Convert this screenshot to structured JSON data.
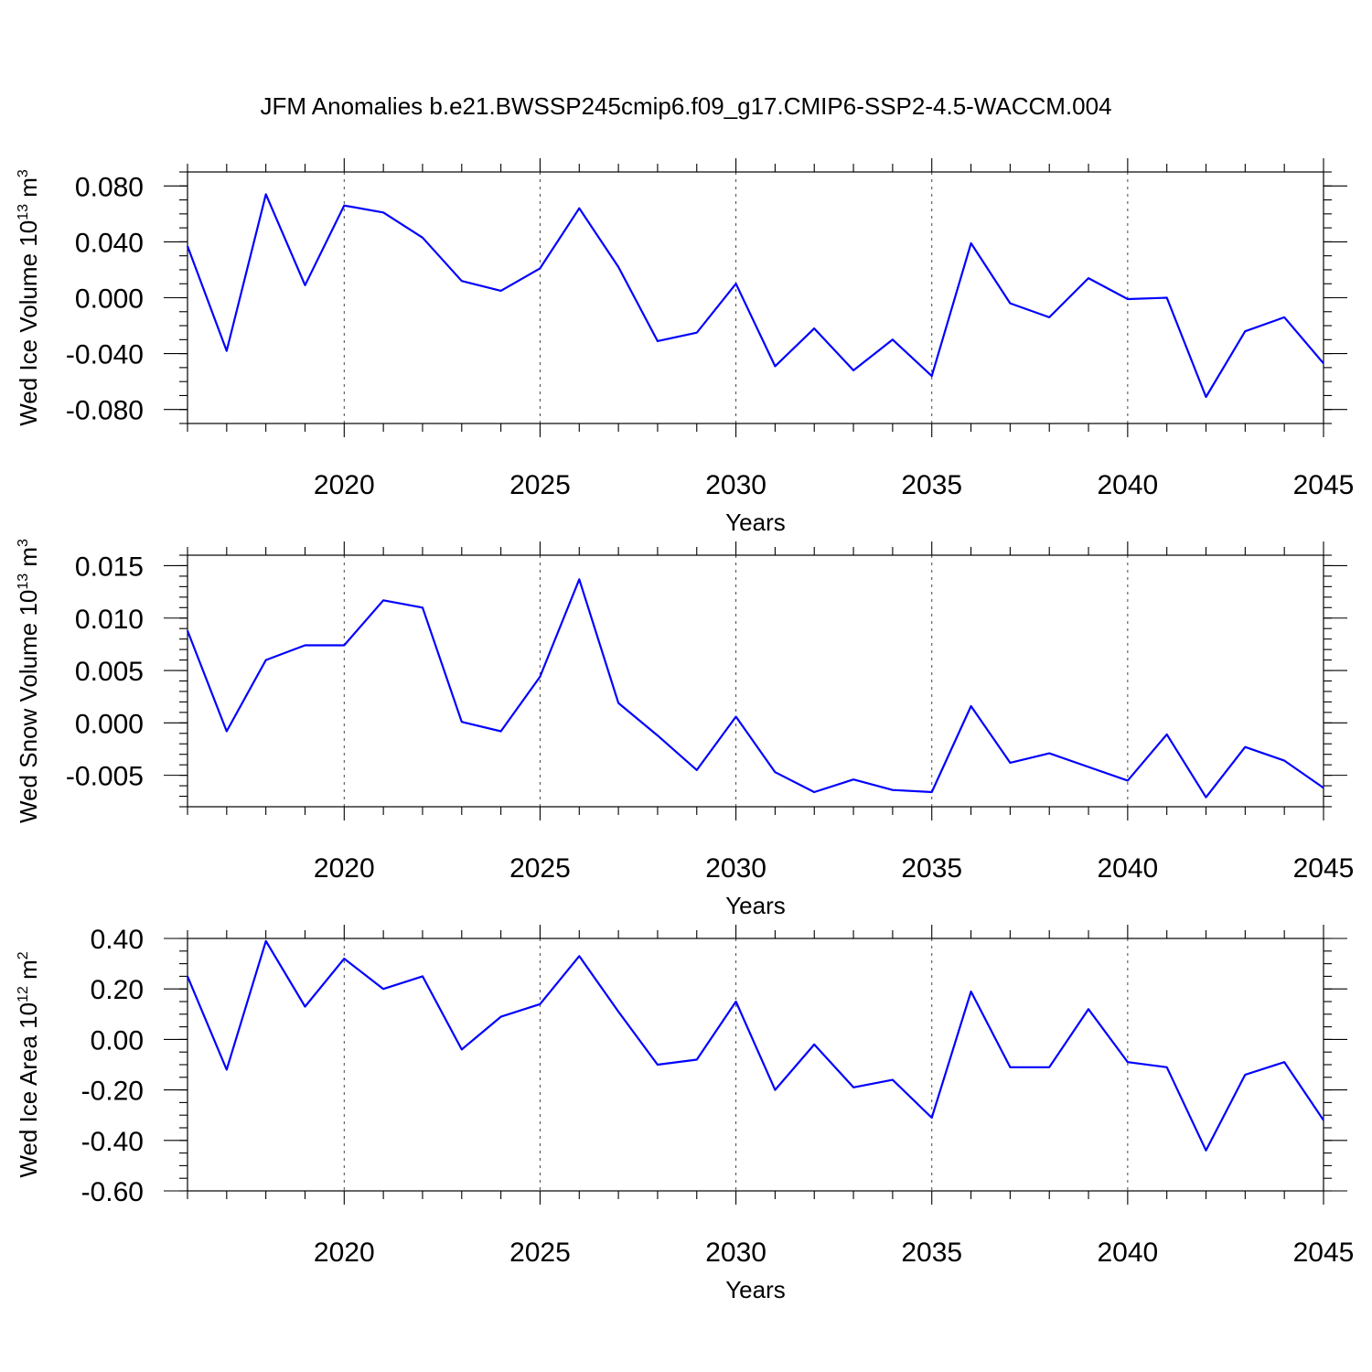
{
  "title": "JFM Anomalies b.e21.BWSSP245cmip6.f09_g17.CMIP6-SSP2-4.5-WACCM.004",
  "line_color": "#0000ff",
  "chart_data": [
    {
      "type": "line",
      "ylabel": "Wed Ice Volume 10",
      "ylabel_exp": "13",
      "ylabel_unit": " m",
      "ylabel_unit_exp": "3",
      "xlabel": "Years",
      "xlim": [
        2016,
        2045
      ],
      "ylim": [
        -0.09,
        0.09
      ],
      "yticks": [
        0.08,
        0.04,
        0.0,
        -0.04,
        -0.08
      ],
      "ytick_labels": [
        "0.080",
        "0.040",
        "0.000",
        "-0.040",
        "-0.080"
      ],
      "yminor_step": 0.01,
      "xticks": [
        2020,
        2025,
        2030,
        2035,
        2040,
        2045
      ],
      "xtick_labels": [
        "2020",
        "2025",
        "2030",
        "2035",
        "2040",
        "2045"
      ],
      "grid_x": [
        2020,
        2025,
        2030,
        2035,
        2040
      ],
      "x": [
        2016,
        2017,
        2018,
        2019,
        2020,
        2021,
        2022,
        2023,
        2024,
        2025,
        2026,
        2027,
        2028,
        2029,
        2030,
        2031,
        2032,
        2033,
        2034,
        2035,
        2036,
        2037,
        2038,
        2039,
        2040,
        2041,
        2042,
        2043,
        2044,
        2045
      ],
      "values": [
        0.037,
        -0.038,
        0.074,
        0.009,
        0.066,
        0.061,
        0.043,
        0.012,
        0.005,
        0.021,
        0.064,
        0.022,
        -0.031,
        -0.025,
        0.01,
        -0.049,
        -0.022,
        -0.052,
        -0.03,
        -0.056,
        0.039,
        -0.004,
        -0.014,
        0.014,
        -0.001,
        0.0,
        -0.071,
        -0.024,
        -0.014,
        -0.047
      ]
    },
    {
      "type": "line",
      "ylabel": "Wed Snow Volume 10",
      "ylabel_exp": "13",
      "ylabel_unit": " m",
      "ylabel_unit_exp": "3",
      "xlabel": "Years",
      "xlim": [
        2016,
        2045
      ],
      "ylim": [
        -0.008,
        0.016
      ],
      "yticks": [
        0.015,
        0.01,
        0.005,
        0.0,
        -0.005
      ],
      "ytick_labels": [
        "0.015",
        "0.010",
        "0.005",
        "0.000",
        "-0.005"
      ],
      "yminor_step": 0.001,
      "xticks": [
        2020,
        2025,
        2030,
        2035,
        2040,
        2045
      ],
      "xtick_labels": [
        "2020",
        "2025",
        "2030",
        "2035",
        "2040",
        "2045"
      ],
      "grid_x": [
        2020,
        2025,
        2030,
        2035,
        2040
      ],
      "x": [
        2016,
        2017,
        2018,
        2019,
        2020,
        2021,
        2022,
        2023,
        2024,
        2025,
        2026,
        2027,
        2028,
        2029,
        2030,
        2031,
        2032,
        2033,
        2034,
        2035,
        2036,
        2037,
        2038,
        2039,
        2040,
        2041,
        2042,
        2043,
        2044,
        2045
      ],
      "values": [
        0.0088,
        -0.0008,
        0.006,
        0.0074,
        0.0074,
        0.0117,
        0.011,
        0.0001,
        -0.0008,
        0.0044,
        0.0137,
        0.0019,
        -0.0012,
        -0.0045,
        0.0006,
        -0.0047,
        -0.0066,
        -0.0054,
        -0.0064,
        -0.0066,
        0.0016,
        -0.0038,
        -0.0029,
        -0.0042,
        -0.0055,
        -0.0011,
        -0.0071,
        -0.0023,
        -0.0036,
        -0.0062
      ]
    },
    {
      "type": "line",
      "ylabel": "Wed Ice Area 10",
      "ylabel_exp": "12",
      "ylabel_unit": " m",
      "ylabel_unit_exp": "2",
      "xlabel": "Years",
      "xlim": [
        2016,
        2045
      ],
      "ylim": [
        -0.6,
        0.4
      ],
      "yticks": [
        0.4,
        0.2,
        0.0,
        -0.2,
        -0.4,
        -0.6
      ],
      "ytick_labels": [
        "0.40",
        "0.20",
        "0.00",
        "-0.20",
        "-0.40",
        "-0.60"
      ],
      "yminor_step": 0.05,
      "xticks": [
        2020,
        2025,
        2030,
        2035,
        2040,
        2045
      ],
      "xtick_labels": [
        "2020",
        "2025",
        "2030",
        "2035",
        "2040",
        "2045"
      ],
      "grid_x": [
        2020,
        2025,
        2030,
        2035,
        2040
      ],
      "x": [
        2016,
        2017,
        2018,
        2019,
        2020,
        2021,
        2022,
        2023,
        2024,
        2025,
        2026,
        2027,
        2028,
        2029,
        2030,
        2031,
        2032,
        2033,
        2034,
        2035,
        2036,
        2037,
        2038,
        2039,
        2040,
        2041,
        2042,
        2043,
        2044,
        2045
      ],
      "values": [
        0.25,
        -0.12,
        0.39,
        0.13,
        0.32,
        0.2,
        0.25,
        -0.04,
        0.09,
        0.14,
        0.33,
        0.11,
        -0.1,
        -0.08,
        0.15,
        -0.2,
        -0.02,
        -0.19,
        -0.16,
        -0.31,
        0.19,
        -0.11,
        -0.11,
        0.12,
        -0.09,
        -0.11,
        -0.44,
        -0.14,
        -0.09,
        -0.32
      ]
    }
  ]
}
